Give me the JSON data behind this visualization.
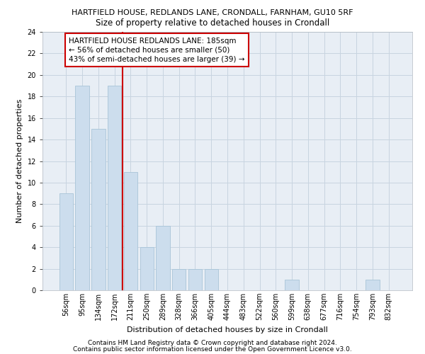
{
  "title": "HARTFIELD HOUSE, REDLANDS LANE, CRONDALL, FARNHAM, GU10 5RF",
  "subtitle": "Size of property relative to detached houses in Crondall",
  "xlabel": "Distribution of detached houses by size in Crondall",
  "ylabel": "Number of detached properties",
  "bar_labels": [
    "56sqm",
    "95sqm",
    "134sqm",
    "172sqm",
    "211sqm",
    "250sqm",
    "289sqm",
    "328sqm",
    "366sqm",
    "405sqm",
    "444sqm",
    "483sqm",
    "522sqm",
    "560sqm",
    "599sqm",
    "638sqm",
    "677sqm",
    "716sqm",
    "754sqm",
    "793sqm",
    "832sqm"
  ],
  "bar_values": [
    9,
    19,
    15,
    19,
    11,
    4,
    6,
    2,
    2,
    2,
    0,
    0,
    0,
    0,
    1,
    0,
    0,
    0,
    0,
    1,
    0
  ],
  "bar_color": "#ccdded",
  "bar_edgecolor": "#a8c4d8",
  "reference_line_x": 3.5,
  "reference_line_label": "HARTFIELD HOUSE REDLANDS LANE: 185sqm\n← 56% of detached houses are smaller (50)\n43% of semi-detached houses are larger (39) →",
  "annotation_box_color": "#ffffff",
  "annotation_box_edgecolor": "#cc0000",
  "ylim": [
    0,
    24
  ],
  "yticks": [
    0,
    2,
    4,
    6,
    8,
    10,
    12,
    14,
    16,
    18,
    20,
    22,
    24
  ],
  "grid_color": "#c8d4e0",
  "background_color": "#e8eef5",
  "footer1": "Contains HM Land Registry data © Crown copyright and database right 2024.",
  "footer2": "Contains public sector information licensed under the Open Government Licence v3.0.",
  "title_fontsize": 8,
  "subtitle_fontsize": 8.5,
  "tick_fontsize": 7,
  "ylabel_fontsize": 8,
  "xlabel_fontsize": 8,
  "annotation_fontsize": 7.5,
  "footer_fontsize": 6.5
}
